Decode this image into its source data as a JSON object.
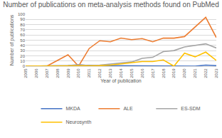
{
  "chart_data": {
    "type": "line",
    "title": "Number of publications on meta-analysis methods found on PubMed",
    "x_label": "Year of publication",
    "y_label": "Number of publications",
    "categories": [
      "2005",
      "2006",
      "2007",
      "2008",
      "2009",
      "2010",
      "2011",
      "2012",
      "2013",
      "2014",
      "2015",
      "2016",
      "2017",
      "2018",
      "2019",
      "2020",
      "2021",
      "2022",
      "2023"
    ],
    "series": [
      {
        "name": "MKDA",
        "color": "#4472c4",
        "values": [
          0,
          0,
          0,
          0,
          1,
          2,
          1,
          1,
          1,
          1,
          0,
          1,
          1,
          0,
          0,
          0,
          0,
          2,
          1
        ]
      },
      {
        "name": "ALE",
        "color": "#ed7d31",
        "values": [
          0,
          0,
          0,
          11,
          22,
          0,
          34,
          49,
          47,
          54,
          51,
          53,
          47,
          54,
          54,
          57,
          76,
          94,
          55
        ]
      },
      {
        "name": "ES-SDM",
        "color": "#a5a5a5",
        "values": [
          0,
          0,
          0,
          1,
          1,
          3,
          1,
          2,
          4,
          5,
          8,
          15,
          17,
          28,
          30,
          37,
          40,
          43,
          35
        ]
      },
      {
        "name": "Neurosynth",
        "color": "#ffc000",
        "values": [
          0,
          0,
          0,
          0,
          0,
          0,
          0,
          1,
          2,
          4,
          6,
          9,
          9,
          12,
          0,
          25,
          18,
          27,
          11
        ]
      }
    ],
    "ylim": [
      0,
      100
    ],
    "yticks": [
      0,
      10,
      20,
      30,
      40,
      50,
      60,
      70,
      80,
      90,
      100
    ],
    "grid": true,
    "legend": "bottom"
  }
}
